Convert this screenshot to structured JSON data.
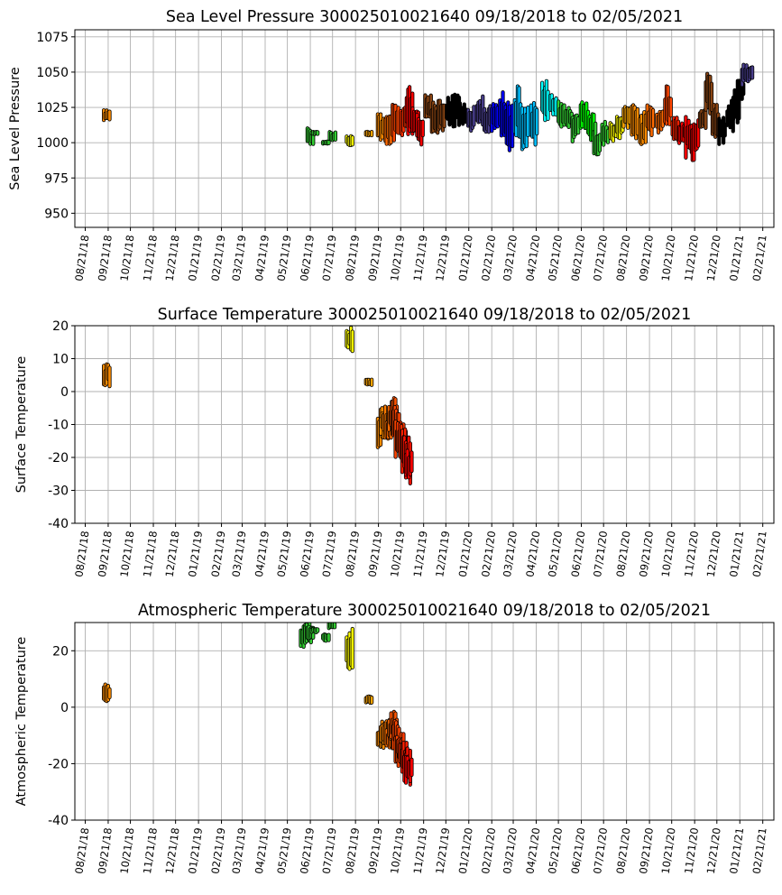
{
  "chart_data": [
    {
      "type": "scatter",
      "title": "Sea Level Pressure 300025010021640  09/18/2018 to 02/05/2021",
      "xlabel": "",
      "ylabel": "Sea Level Pressure",
      "ylim": [
        940,
        1080
      ],
      "yticks": [
        950,
        975,
        1000,
        1025,
        1050,
        1075
      ],
      "grid": true,
      "segments": [
        {
          "date": "09/19/18",
          "ymin": 1016,
          "ymax": 1023,
          "color": "#ff8c00"
        },
        {
          "date": "06/21/19",
          "ymin": 997,
          "ymax": 1011,
          "color": "#32cd32"
        },
        {
          "date": "06/27/19",
          "ymin": 1006,
          "ymax": 1008,
          "color": "#32cd32"
        },
        {
          "date": "07/12/19",
          "ymin": 999,
          "ymax": 1001,
          "color": "#32cd32"
        },
        {
          "date": "07/21/19",
          "ymin": 1001,
          "ymax": 1008,
          "color": "#32cd32"
        },
        {
          "date": "08/13/19",
          "ymin": 998,
          "ymax": 1006,
          "color": "#ffff00"
        },
        {
          "date": "09/08/19",
          "ymin": 1005,
          "ymax": 1008,
          "color": "#ffa500"
        },
        {
          "date": "09/24/19",
          "ymin": 1000,
          "ymax": 1021,
          "color": "#ff8c00"
        },
        {
          "date": "10/04/19",
          "ymin": 998,
          "ymax": 1020,
          "color": "#ff6a00"
        },
        {
          "date": "10/14/19",
          "ymin": 1001,
          "ymax": 1027,
          "color": "#ff4500"
        },
        {
          "date": "10/25/19",
          "ymin": 1005,
          "ymax": 1025,
          "color": "#ff3000"
        },
        {
          "date": "11/02/19",
          "ymin": 1006,
          "ymax": 1040,
          "color": "#ff0000"
        },
        {
          "date": "11/10/19",
          "ymin": 1002,
          "ymax": 1025,
          "color": "#ff0000"
        },
        {
          "date": "11/16/19",
          "ymin": 998,
          "ymax": 1021,
          "color": "#ff0000"
        },
        {
          "date": "11/27/19",
          "ymin": 1015,
          "ymax": 1034,
          "color": "#8b4513"
        },
        {
          "date": "12/06/19",
          "ymin": 1003,
          "ymax": 1032,
          "color": "#8b4513"
        },
        {
          "date": "12/15/19",
          "ymin": 1008,
          "ymax": 1030,
          "color": "#8b4513"
        },
        {
          "date": "12/26/19",
          "ymin": 1012,
          "ymax": 1034,
          "color": "#000000"
        },
        {
          "date": "01/04/20",
          "ymin": 1010,
          "ymax": 1036,
          "color": "#000000"
        },
        {
          "date": "01/13/20",
          "ymin": 1012,
          "ymax": 1028,
          "color": "#000000"
        },
        {
          "date": "01/24/20",
          "ymin": 1008,
          "ymax": 1026,
          "color": "#483d8b"
        },
        {
          "date": "02/05/20",
          "ymin": 1012,
          "ymax": 1033,
          "color": "#483d8b"
        },
        {
          "date": "02/15/20",
          "ymin": 1005,
          "ymax": 1028,
          "color": "#483d8b"
        },
        {
          "date": "02/25/20",
          "ymin": 1008,
          "ymax": 1028,
          "color": "#0000ff"
        },
        {
          "date": "03/07/20",
          "ymin": 1002,
          "ymax": 1036,
          "color": "#0000ff"
        },
        {
          "date": "03/16/20",
          "ymin": 993,
          "ymax": 1031,
          "color": "#0000ff"
        },
        {
          "date": "03/27/20",
          "ymin": 1000,
          "ymax": 1040,
          "color": "#00bfff"
        },
        {
          "date": "04/06/20",
          "ymin": 995,
          "ymax": 1026,
          "color": "#00bfff"
        },
        {
          "date": "04/18/20",
          "ymin": 997,
          "ymax": 1030,
          "color": "#00bfff"
        },
        {
          "date": "05/03/20",
          "ymin": 1012,
          "ymax": 1047,
          "color": "#00ffff"
        },
        {
          "date": "05/14/20",
          "ymin": 1018,
          "ymax": 1035,
          "color": "#00ffff"
        },
        {
          "date": "05/25/20",
          "ymin": 1010,
          "ymax": 1030,
          "color": "#32cd32"
        },
        {
          "date": "06/04/20",
          "ymin": 1010,
          "ymax": 1025,
          "color": "#32cd32"
        },
        {
          "date": "06/13/20",
          "ymin": 1000,
          "ymax": 1022,
          "color": "#32cd32"
        },
        {
          "date": "06/24/20",
          "ymin": 1008,
          "ymax": 1032,
          "color": "#00ff00"
        },
        {
          "date": "07/04/20",
          "ymin": 1000,
          "ymax": 1025,
          "color": "#00ff00"
        },
        {
          "date": "07/12/20",
          "ymin": 986,
          "ymax": 1014,
          "color": "#32cd32"
        },
        {
          "date": "07/23/20",
          "ymin": 996,
          "ymax": 1015,
          "color": "#32cd32"
        },
        {
          "date": "08/03/20",
          "ymin": 1001,
          "ymax": 1014,
          "color": "#ffff00"
        },
        {
          "date": "08/12/20",
          "ymin": 1003,
          "ymax": 1020,
          "color": "#ffff00"
        },
        {
          "date": "08/21/20",
          "ymin": 1010,
          "ymax": 1026,
          "color": "#ffa500"
        },
        {
          "date": "09/01/20",
          "ymin": 1000,
          "ymax": 1029,
          "color": "#ff8c00"
        },
        {
          "date": "09/12/20",
          "ymin": 996,
          "ymax": 1022,
          "color": "#ff8c00"
        },
        {
          "date": "09/22/20",
          "ymin": 1005,
          "ymax": 1029,
          "color": "#ff6a00"
        },
        {
          "date": "10/05/20",
          "ymin": 1005,
          "ymax": 1025,
          "color": "#ff6a00"
        },
        {
          "date": "10/16/20",
          "ymin": 1010,
          "ymax": 1041,
          "color": "#ff4500"
        },
        {
          "date": "10/26/20",
          "ymin": 1000,
          "ymax": 1020,
          "color": "#ff2000"
        },
        {
          "date": "11/04/20",
          "ymin": 999,
          "ymax": 1016,
          "color": "#ff0000"
        },
        {
          "date": "11/13/20",
          "ymin": 989,
          "ymax": 1022,
          "color": "#ff0000"
        },
        {
          "date": "11/22/20",
          "ymin": 987,
          "ymax": 1018,
          "color": "#ff0000"
        },
        {
          "date": "12/02/20",
          "ymin": 1008,
          "ymax": 1025,
          "color": "#8b4513"
        },
        {
          "date": "12/10/20",
          "ymin": 1020,
          "ymax": 1051,
          "color": "#8b4513"
        },
        {
          "date": "12/19/20",
          "ymin": 1003,
          "ymax": 1028,
          "color": "#8b4513"
        },
        {
          "date": "12/28/20",
          "ymin": 998,
          "ymax": 1020,
          "color": "#000000"
        },
        {
          "date": "01/08/21",
          "ymin": 1005,
          "ymax": 1030,
          "color": "#000000"
        },
        {
          "date": "01/16/21",
          "ymin": 1012,
          "ymax": 1040,
          "color": "#000000"
        },
        {
          "date": "01/22/21",
          "ymin": 1030,
          "ymax": 1045,
          "color": "#000000"
        },
        {
          "date": "01/28/21",
          "ymin": 1040,
          "ymax": 1056,
          "color": "#483d8b"
        },
        {
          "date": "02/03/21",
          "ymin": 1043,
          "ymax": 1055,
          "color": "#483d8b"
        }
      ]
    },
    {
      "type": "scatter",
      "title": "Surface Temperature 300025010021640  09/18/2018 to 02/05/2021",
      "xlabel": "",
      "ylabel": "Surface Temperature",
      "ylim": [
        -40,
        20
      ],
      "yticks": [
        -40,
        -30,
        -20,
        -10,
        0,
        10,
        20
      ],
      "grid": true,
      "segments": [
        {
          "date": "09/19/18",
          "ymin": 1.5,
          "ymax": 8.5,
          "color": "#ff8c00"
        },
        {
          "date": "08/13/19",
          "ymin": 12,
          "ymax": 20,
          "color": "#ffff00"
        },
        {
          "date": "09/08/19",
          "ymin": 1.5,
          "ymax": 4,
          "color": "#ffa500"
        },
        {
          "date": "09/24/19",
          "ymin": -17,
          "ymax": -5,
          "color": "#ff8c00"
        },
        {
          "date": "09/28/19",
          "ymin": -13,
          "ymax": -6,
          "color": "#ff8c00"
        },
        {
          "date": "10/02/19",
          "ymin": -15,
          "ymax": -4,
          "color": "#ff7a00"
        },
        {
          "date": "10/06/19",
          "ymin": -16,
          "ymax": -7,
          "color": "#ff6a00"
        },
        {
          "date": "10/09/19",
          "ymin": -13,
          "ymax": -3,
          "color": "#ff6a00"
        },
        {
          "date": "10/12/19",
          "ymin": -12,
          "ymax": -1,
          "color": "#ff5500"
        },
        {
          "date": "10/15/19",
          "ymin": -15,
          "ymax": -4,
          "color": "#ff4500"
        },
        {
          "date": "10/18/19",
          "ymin": -21,
          "ymax": -9,
          "color": "#ff4500"
        },
        {
          "date": "10/21/19",
          "ymin": -20,
          "ymax": -8,
          "color": "#ff3a00"
        },
        {
          "date": "10/24/19",
          "ymin": -23,
          "ymax": -10,
          "color": "#ff3000"
        },
        {
          "date": "10/27/19",
          "ymin": -25,
          "ymax": -11,
          "color": "#ff2000"
        },
        {
          "date": "10/30/19",
          "ymin": -28,
          "ymax": -13,
          "color": "#ff1000"
        },
        {
          "date": "11/01/19",
          "ymin": -27,
          "ymax": -17,
          "color": "#ff0000"
        }
      ]
    },
    {
      "type": "scatter",
      "title": "Atmospheric Temperature 300025010021640  09/18/2018 to 02/05/2021",
      "xlabel": "",
      "ylabel": "Atmospheric Temperature",
      "ylim": [
        -40,
        30
      ],
      "yticks": [
        -40,
        -20,
        0,
        20
      ],
      "grid": true,
      "segments": [
        {
          "date": "09/19/18",
          "ymin": 1.5,
          "ymax": 8.5,
          "color": "#ff8c00"
        },
        {
          "date": "06/12/19",
          "ymin": 21,
          "ymax": 30,
          "color": "#32cd32"
        },
        {
          "date": "06/18/19",
          "ymin": 22,
          "ymax": 30,
          "color": "#32cd32"
        },
        {
          "date": "06/21/19",
          "ymin": 24,
          "ymax": 29,
          "color": "#32cd32"
        },
        {
          "date": "06/27/19",
          "ymin": 26.5,
          "ymax": 28,
          "color": "#32cd32"
        },
        {
          "date": "07/12/19",
          "ymin": 23.5,
          "ymax": 26,
          "color": "#32cd32"
        },
        {
          "date": "07/20/19",
          "ymin": 28,
          "ymax": 30,
          "color": "#32cd32"
        },
        {
          "date": "08/13/19",
          "ymin": 12,
          "ymax": 28,
          "color": "#ffff00"
        },
        {
          "date": "09/08/19",
          "ymin": 1.5,
          "ymax": 4,
          "color": "#ffa500"
        },
        {
          "date": "09/24/19",
          "ymin": -17,
          "ymax": -5,
          "color": "#ff8c00"
        },
        {
          "date": "09/28/19",
          "ymin": -13,
          "ymax": -6,
          "color": "#ff8c00"
        },
        {
          "date": "10/02/19",
          "ymin": -15,
          "ymax": -4,
          "color": "#ff7a00"
        },
        {
          "date": "10/06/19",
          "ymin": -16,
          "ymax": -7,
          "color": "#ff6a00"
        },
        {
          "date": "10/09/19",
          "ymin": -13,
          "ymax": -3,
          "color": "#ff6a00"
        },
        {
          "date": "10/12/19",
          "ymin": -12,
          "ymax": -1,
          "color": "#ff5500"
        },
        {
          "date": "10/15/19",
          "ymin": -15,
          "ymax": -4,
          "color": "#ff4500"
        },
        {
          "date": "10/18/19",
          "ymin": -21,
          "ymax": -9,
          "color": "#ff4500"
        },
        {
          "date": "10/21/19",
          "ymin": -20,
          "ymax": -8,
          "color": "#ff3a00"
        },
        {
          "date": "10/24/19",
          "ymin": -23,
          "ymax": -10,
          "color": "#ff3000"
        },
        {
          "date": "10/27/19",
          "ymin": -25,
          "ymax": -11,
          "color": "#ff2000"
        },
        {
          "date": "10/30/19",
          "ymin": -28,
          "ymax": -13,
          "color": "#ff1000"
        },
        {
          "date": "11/01/19",
          "ymin": -27,
          "ymax": -17,
          "color": "#ff0000"
        }
      ]
    }
  ],
  "x_axis": {
    "start_date": "08/07/18",
    "end_date": "03/08/21",
    "tick_labels": [
      "08/21/18",
      "09/21/18",
      "10/21/18",
      "11/21/18",
      "12/21/18",
      "01/21/19",
      "02/21/19",
      "03/21/19",
      "04/21/19",
      "05/21/19",
      "06/21/19",
      "07/21/19",
      "08/21/19",
      "09/21/19",
      "10/21/19",
      "11/21/19",
      "12/21/19",
      "01/21/20",
      "02/21/20",
      "03/21/20",
      "04/21/20",
      "05/21/20",
      "06/21/20",
      "07/21/20",
      "08/21/20",
      "09/21/20",
      "10/21/20",
      "11/21/20",
      "12/21/20",
      "01/21/21",
      "02/21/21"
    ]
  }
}
